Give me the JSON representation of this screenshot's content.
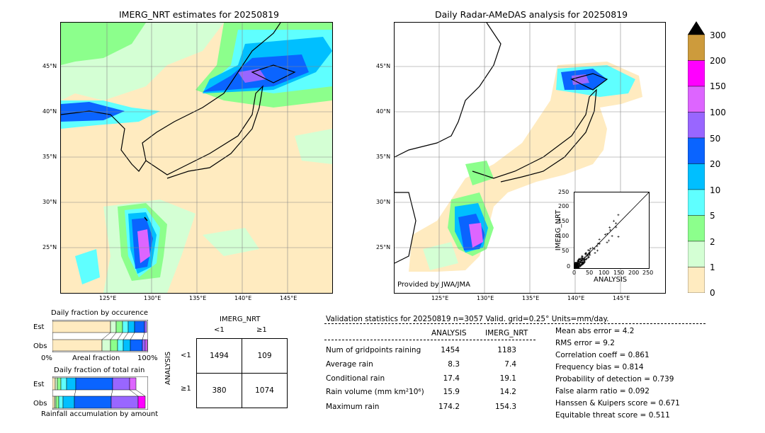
{
  "chart_data": [
    {
      "type": "heatmap",
      "title": "IMERG_NRT estimates for 20250819",
      "x_ticks": [
        "125°E",
        "130°E",
        "135°E",
        "140°E",
        "145°E"
      ],
      "y_ticks": [
        "45°N",
        "40°N",
        "35°N",
        "30°N",
        "25°N"
      ]
    },
    {
      "type": "heatmap",
      "title": "Daily Radar-AMeDAS analysis for 20250819",
      "x_ticks": [
        "125°E",
        "130°E",
        "135°E",
        "140°E",
        "145°E"
      ],
      "y_ticks": [
        "45°N",
        "40°N",
        "35°N",
        "30°N",
        "25°N"
      ],
      "annotation": "Provided by JWA/JMA"
    },
    {
      "type": "scatter",
      "xlabel": "ANALYSIS",
      "ylabel": "IMERG_NRT",
      "xlim": [
        0,
        250
      ],
      "ylim": [
        0,
        250
      ],
      "ticks": [
        "0",
        "50",
        "100",
        "150",
        "200",
        "250"
      ]
    },
    {
      "type": "bar",
      "title": "Daily fraction by occurence",
      "rows": [
        "Est",
        "Obs"
      ],
      "xlabel": "Areal fraction",
      "x_left": "0%",
      "x_right": "100%"
    },
    {
      "type": "bar",
      "title": "Daily fraction of total rain",
      "rows": [
        "Est",
        "Obs"
      ],
      "xlabel": "Rainfall accumulation by amount"
    },
    {
      "type": "table",
      "title": "IMERG_NRT",
      "columns": [
        "<1",
        "≥1"
      ],
      "row_title": "ANALYSIS",
      "rows": [
        "<1",
        "≥1"
      ],
      "values": [
        [
          "1494",
          "109"
        ],
        [
          "380",
          "1074"
        ]
      ]
    }
  ],
  "colorbar": {
    "labels": [
      "300",
      "200",
      "150",
      "100",
      "50",
      "20",
      "10",
      "5",
      "2",
      "1",
      "0"
    ],
    "colors": [
      "#cd9b3c",
      "#ff00ff",
      "#dd65ff",
      "#9966ff",
      "#0a64ff",
      "#00bfff",
      "#5fffff",
      "#8cff8c",
      "#d4ffd4",
      "#ffebc0"
    ]
  },
  "validation": {
    "header": "Validation statistics for 20250819  n=3057 Valid. grid=0.25° Units=mm/day.",
    "col_analysis": "ANALYSIS",
    "col_imerg": "IMERG_NRT",
    "rows": [
      {
        "label": "Num of gridpoints raining",
        "analysis": "1454",
        "imerg": "1183"
      },
      {
        "label": "Average rain",
        "analysis": "8.3",
        "imerg": "7.4"
      },
      {
        "label": "Conditional rain",
        "analysis": "17.4",
        "imerg": "19.1"
      },
      {
        "label": "Rain volume (mm km²10⁶)",
        "analysis": "15.9",
        "imerg": "14.2"
      },
      {
        "label": "Maximum rain",
        "analysis": "174.2",
        "imerg": "154.3"
      }
    ],
    "scores": [
      "Mean abs error =    4.2",
      "RMS error =    9.2",
      "Correlation coeff =  0.861",
      "Frequency bias =  0.814",
      "Probability of detection =  0.739",
      "False alarm ratio =  0.092",
      "Hanssen & Kuipers score =  0.671",
      "Equitable threat score =  0.511"
    ]
  }
}
